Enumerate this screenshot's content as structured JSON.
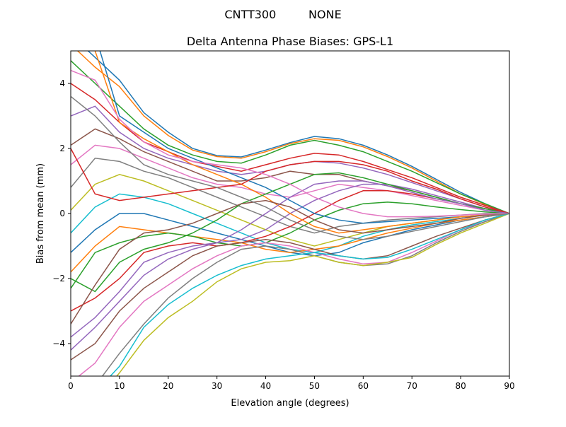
{
  "chart_data": {
    "type": "line",
    "suptitle": "CNTT300         NONE",
    "title": "Delta Antenna Phase Biases: GPS-L1",
    "xlabel": "Elevation angle (degrees)",
    "ylabel": "Bias from mean (mm)",
    "xlim": [
      0,
      90
    ],
    "ylim": [
      -5,
      5
    ],
    "xticks": [
      0,
      10,
      20,
      30,
      40,
      50,
      60,
      70,
      80,
      90
    ],
    "yticks": [
      -4,
      -2,
      0,
      2,
      4
    ],
    "grid": false,
    "x": [
      0,
      5,
      10,
      15,
      20,
      25,
      30,
      35,
      40,
      45,
      50,
      55,
      60,
      65,
      70,
      75,
      80,
      85,
      90
    ],
    "colors": [
      "#1f77b4",
      "#ff7f0e",
      "#2ca02c",
      "#d62728",
      "#9467bd",
      "#8c564b",
      "#e377c2",
      "#7f7f7f",
      "#bcbd22",
      "#17becf"
    ],
    "series": [
      {
        "values": [
          5.5,
          4.8,
          4.1,
          3.1,
          2.5,
          2.0,
          1.78,
          1.74,
          1.95,
          2.18,
          2.37,
          2.3,
          2.1,
          1.8,
          1.45,
          1.05,
          0.65,
          0.3,
          0
        ]
      },
      {
        "values": [
          5.2,
          4.5,
          3.9,
          3.0,
          2.4,
          1.95,
          1.75,
          1.7,
          1.9,
          2.15,
          2.3,
          2.25,
          2.05,
          1.75,
          1.4,
          1.0,
          0.6,
          0.28,
          0
        ]
      },
      {
        "values": [
          4.7,
          4.0,
          3.3,
          2.6,
          2.1,
          1.8,
          1.6,
          1.55,
          1.8,
          2.1,
          2.25,
          2.1,
          1.9,
          1.6,
          1.3,
          0.95,
          0.6,
          0.3,
          0
        ]
      },
      {
        "values": [
          4.0,
          3.5,
          2.8,
          2.2,
          1.9,
          1.6,
          1.45,
          1.3,
          1.5,
          1.7,
          1.85,
          1.8,
          1.6,
          1.35,
          1.1,
          0.8,
          0.5,
          0.25,
          0
        ]
      },
      {
        "values": [
          3.0,
          3.3,
          2.5,
          2.0,
          1.7,
          1.5,
          1.3,
          1.2,
          1.3,
          1.5,
          1.6,
          1.55,
          1.4,
          1.2,
          0.95,
          0.7,
          0.45,
          0.2,
          0
        ]
      },
      {
        "values": [
          2.1,
          2.6,
          2.3,
          1.9,
          1.6,
          1.3,
          1.0,
          1.0,
          1.1,
          1.3,
          1.2,
          1.2,
          1.0,
          0.85,
          0.7,
          0.5,
          0.3,
          0.15,
          0
        ]
      },
      {
        "values": [
          1.5,
          2.1,
          2.0,
          1.7,
          1.4,
          1.1,
          0.9,
          0.8,
          0.6,
          0.5,
          0.7,
          0.9,
          0.8,
          0.7,
          0.55,
          0.4,
          0.25,
          0.1,
          0
        ]
      },
      {
        "values": [
          0.8,
          1.7,
          1.6,
          1.3,
          1.1,
          0.8,
          0.5,
          0.2,
          -0.1,
          -0.4,
          -0.6,
          -0.4,
          -0.3,
          -0.2,
          -0.15,
          -0.1,
          -0.05,
          0,
          0
        ]
      },
      {
        "values": [
          0.1,
          0.9,
          1.2,
          1.0,
          0.7,
          0.4,
          0.1,
          -0.2,
          -0.5,
          -0.8,
          -1.0,
          -0.8,
          -0.6,
          -0.4,
          -0.3,
          -0.2,
          -0.1,
          -0.05,
          0
        ]
      },
      {
        "values": [
          -0.6,
          0.2,
          0.6,
          0.5,
          0.3,
          0.0,
          -0.3,
          -0.6,
          -0.9,
          -1.1,
          -1.2,
          -1.0,
          -0.7,
          -0.5,
          -0.35,
          -0.25,
          -0.15,
          -0.05,
          0
        ]
      },
      {
        "values": [
          -1.2,
          -0.5,
          0.0,
          0.0,
          -0.2,
          -0.4,
          -0.6,
          -0.8,
          -1.0,
          -1.2,
          -1.3,
          -1.2,
          -0.9,
          -0.7,
          -0.5,
          -0.35,
          -0.2,
          -0.1,
          0
        ]
      },
      {
        "values": [
          -1.8,
          -1.0,
          -0.4,
          -0.5,
          -0.6,
          -0.7,
          -0.8,
          -0.9,
          -1.1,
          -1.2,
          -1.1,
          -1.0,
          -0.8,
          -0.6,
          -0.45,
          -0.3,
          -0.2,
          -0.1,
          0
        ]
      },
      {
        "values": [
          -2.3,
          -1.2,
          -0.9,
          -0.7,
          -0.6,
          -0.7,
          -0.9,
          -1.0,
          -0.9,
          -0.6,
          -0.2,
          0.1,
          0.3,
          0.35,
          0.3,
          0.2,
          0.12,
          0.05,
          0
        ]
      },
      {
        "values": [
          -3.0,
          -2.6,
          -2.0,
          -1.2,
          -1.0,
          -0.9,
          -1.0,
          -0.9,
          -0.7,
          -0.4,
          0.0,
          0.4,
          0.7,
          0.7,
          0.6,
          0.45,
          0.3,
          0.15,
          0
        ]
      },
      {
        "values": [
          -3.8,
          -3.2,
          -2.4,
          -1.5,
          -1.2,
          -1.0,
          -0.9,
          -0.8,
          -0.5,
          0.0,
          0.4,
          0.7,
          0.9,
          0.9,
          0.75,
          0.55,
          0.35,
          0.15,
          0
        ]
      },
      {
        "values": [
          -4.5,
          -4.0,
          -3.0,
          -2.3,
          -1.8,
          -1.3,
          -1.0,
          -0.9,
          -0.8,
          -0.9,
          -1.1,
          -1.3,
          -1.4,
          -1.3,
          -1.0,
          -0.7,
          -0.45,
          -0.2,
          0
        ]
      },
      {
        "values": [
          -5.2,
          -4.6,
          -3.5,
          -2.7,
          -2.2,
          -1.7,
          -1.3,
          -1.0,
          -0.9,
          -1.0,
          -1.2,
          -1.4,
          -1.55,
          -1.5,
          -1.2,
          -0.85,
          -0.5,
          -0.25,
          0
        ]
      },
      {
        "values": [
          -5.8,
          -5.3,
          -4.3,
          -3.4,
          -2.6,
          -2.0,
          -1.5,
          -1.1,
          -1.0,
          -1.1,
          -1.3,
          -1.5,
          -1.6,
          -1.55,
          -1.3,
          -0.9,
          -0.55,
          -0.25,
          0
        ]
      },
      {
        "values": [
          -6.5,
          -5.8,
          -4.9,
          -3.9,
          -3.2,
          -2.7,
          -2.1,
          -1.7,
          -1.5,
          -1.45,
          -1.3,
          -1.5,
          -1.6,
          -1.5,
          -1.35,
          -0.95,
          -0.6,
          -0.3,
          0
        ]
      },
      {
        "values": [
          -6.0,
          -5.5,
          -4.7,
          -3.5,
          -2.8,
          -2.3,
          -1.9,
          -1.6,
          -1.4,
          -1.3,
          -1.2,
          -1.3,
          -1.4,
          -1.35,
          -1.1,
          -0.8,
          -0.5,
          -0.2,
          0
        ]
      },
      {
        "values": [
          6.0,
          5.5,
          3.0,
          2.5,
          2.0,
          1.7,
          1.4,
          1.1,
          0.8,
          0.4,
          0.0,
          -0.2,
          -0.3,
          -0.25,
          -0.2,
          -0.15,
          -0.1,
          -0.05,
          0
        ]
      },
      {
        "values": [
          5.8,
          5.0,
          2.8,
          2.3,
          1.9,
          1.5,
          1.2,
          0.9,
          0.5,
          0.0,
          -0.4,
          -0.6,
          -0.5,
          -0.4,
          -0.3,
          -0.2,
          -0.1,
          -0.05,
          0
        ]
      },
      {
        "values": [
          -2.0,
          -2.4,
          -1.5,
          -1.1,
          -0.9,
          -0.6,
          -0.2,
          0.3,
          0.6,
          0.9,
          1.2,
          1.25,
          1.1,
          0.9,
          0.7,
          0.5,
          0.3,
          0.15,
          0
        ]
      },
      {
        "values": [
          2.0,
          0.6,
          0.4,
          0.5,
          0.6,
          0.7,
          0.8,
          0.9,
          1.3,
          1.5,
          1.6,
          1.6,
          1.5,
          1.3,
          1.0,
          0.75,
          0.45,
          0.2,
          0
        ]
      },
      {
        "values": [
          -4.2,
          -3.5,
          -2.7,
          -1.9,
          -1.4,
          -1.1,
          -0.9,
          -0.5,
          0.0,
          0.5,
          0.9,
          1.0,
          1.0,
          0.85,
          0.65,
          0.45,
          0.3,
          0.1,
          0
        ]
      },
      {
        "values": [
          -3.4,
          -2.2,
          -1.1,
          -0.6,
          -0.5,
          -0.3,
          0.0,
          0.3,
          0.4,
          0.2,
          -0.2,
          -0.5,
          -0.6,
          -0.5,
          -0.4,
          -0.3,
          -0.15,
          -0.05,
          0
        ]
      },
      {
        "values": [
          4.4,
          4.1,
          2.9,
          2.2,
          1.8,
          1.6,
          1.5,
          1.4,
          1.2,
          0.9,
          0.5,
          0.2,
          0.0,
          -0.1,
          -0.1,
          -0.08,
          -0.05,
          -0.02,
          0
        ]
      },
      {
        "values": [
          3.6,
          3.0,
          2.2,
          1.5,
          1.2,
          1.0,
          0.8,
          0.5,
          0.2,
          -0.2,
          -0.5,
          -0.7,
          -0.8,
          -0.7,
          -0.55,
          -0.4,
          -0.25,
          -0.1,
          0
        ]
      }
    ]
  }
}
